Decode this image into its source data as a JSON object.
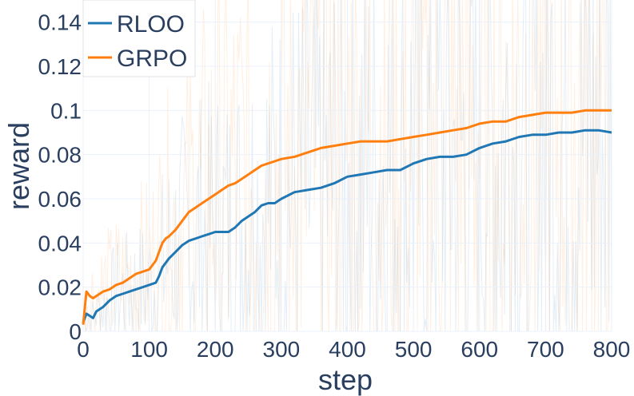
{
  "chart_data": {
    "type": "line",
    "xlabel": "step",
    "ylabel": "reward",
    "xlim": [
      0,
      800
    ],
    "ylim": [
      0,
      0.15
    ],
    "x_ticks": [
      0,
      100,
      200,
      300,
      400,
      500,
      600,
      700,
      800
    ],
    "x_tick_labels": [
      "0",
      "100",
      "200",
      "300",
      "400",
      "500",
      "600",
      "700",
      "800"
    ],
    "y_ticks": [
      0,
      0.02,
      0.04,
      0.06,
      0.08,
      0.1,
      0.12,
      0.14
    ],
    "y_tick_labels": [
      "0",
      "0.02",
      "0.04",
      "0.06",
      "0.08",
      "0.1",
      "0.12",
      "0.14"
    ],
    "grid": true,
    "legend_position": "top-left",
    "series": [
      {
        "name": "RLOO",
        "color": "#1f77b4",
        "x": [
          0,
          5,
          10,
          15,
          20,
          25,
          30,
          40,
          50,
          60,
          70,
          80,
          90,
          100,
          110,
          115,
          120,
          125,
          130,
          140,
          150,
          160,
          170,
          180,
          190,
          200,
          210,
          220,
          230,
          240,
          250,
          260,
          270,
          280,
          290,
          300,
          320,
          340,
          360,
          380,
          400,
          420,
          440,
          460,
          480,
          500,
          520,
          540,
          560,
          580,
          600,
          620,
          640,
          660,
          680,
          700,
          720,
          740,
          760,
          780,
          800
        ],
        "y": [
          0.004,
          0.008,
          0.007,
          0.006,
          0.009,
          0.01,
          0.011,
          0.014,
          0.016,
          0.017,
          0.018,
          0.019,
          0.02,
          0.021,
          0.022,
          0.025,
          0.029,
          0.031,
          0.033,
          0.036,
          0.039,
          0.041,
          0.042,
          0.043,
          0.044,
          0.045,
          0.045,
          0.045,
          0.047,
          0.05,
          0.052,
          0.054,
          0.057,
          0.058,
          0.058,
          0.06,
          0.063,
          0.064,
          0.065,
          0.067,
          0.07,
          0.071,
          0.072,
          0.073,
          0.073,
          0.076,
          0.078,
          0.079,
          0.079,
          0.08,
          0.083,
          0.085,
          0.086,
          0.088,
          0.089,
          0.089,
          0.09,
          0.09,
          0.091,
          0.091,
          0.09
        ]
      },
      {
        "name": "GRPO",
        "color": "#ff7f0e",
        "x": [
          0,
          5,
          10,
          15,
          20,
          25,
          30,
          40,
          50,
          60,
          70,
          80,
          90,
          100,
          110,
          115,
          120,
          125,
          130,
          140,
          150,
          160,
          170,
          180,
          190,
          200,
          210,
          220,
          230,
          240,
          250,
          260,
          270,
          280,
          290,
          300,
          320,
          340,
          360,
          380,
          400,
          420,
          440,
          460,
          480,
          500,
          520,
          540,
          560,
          580,
          600,
          620,
          640,
          660,
          680,
          700,
          720,
          740,
          760,
          780,
          800
        ],
        "y": [
          0.003,
          0.018,
          0.016,
          0.015,
          0.016,
          0.017,
          0.018,
          0.019,
          0.021,
          0.022,
          0.024,
          0.026,
          0.027,
          0.028,
          0.032,
          0.036,
          0.04,
          0.042,
          0.043,
          0.046,
          0.05,
          0.054,
          0.056,
          0.058,
          0.06,
          0.062,
          0.064,
          0.066,
          0.067,
          0.069,
          0.071,
          0.073,
          0.075,
          0.076,
          0.077,
          0.078,
          0.079,
          0.081,
          0.083,
          0.084,
          0.085,
          0.086,
          0.086,
          0.086,
          0.087,
          0.088,
          0.089,
          0.09,
          0.091,
          0.092,
          0.094,
          0.095,
          0.095,
          0.097,
          0.098,
          0.099,
          0.099,
          0.099,
          0.1,
          0.1,
          0.1
        ]
      }
    ]
  }
}
